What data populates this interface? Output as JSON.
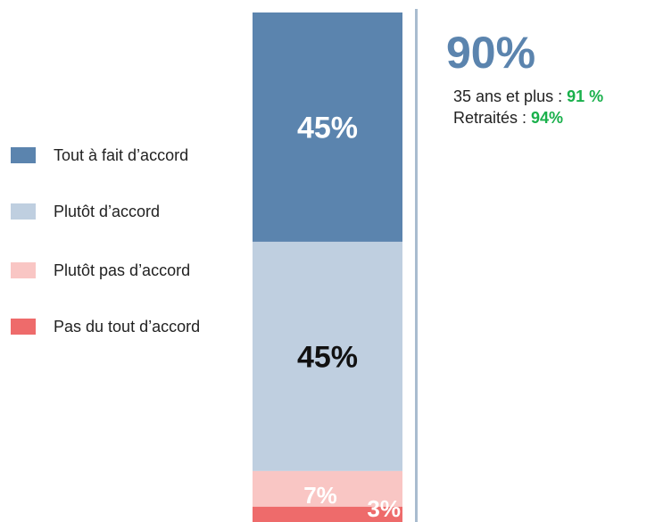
{
  "colors": {
    "strongly_agree": "#5b84ae",
    "somewhat_agree": "#bfcfe0",
    "somewhat_disagree": "#f9c6c4",
    "strongly_disagree": "#ee6b6b",
    "headline": "#5b84ae",
    "highlight": "#19b04b"
  },
  "legend": [
    {
      "label": "Tout à fait d’accord",
      "color": "#5b84ae"
    },
    {
      "label": "Plutôt d’accord",
      "color": "#bfcfe0"
    },
    {
      "label": "Plutôt pas d’accord",
      "color": "#f9c6c4"
    },
    {
      "label": "Pas du tout d’accord",
      "color": "#ee6b6b"
    }
  ],
  "summary": {
    "headline": "90%",
    "details": [
      {
        "label": "35 ans et plus : ",
        "value": "91 %"
      },
      {
        "label": "Retraités : ",
        "value": "94%"
      }
    ]
  },
  "chart_data": {
    "type": "bar",
    "stacked": true,
    "total": 100,
    "series": [
      {
        "name": "Tout à fait d’accord",
        "value": 45,
        "label": "45%",
        "color": "#5b84ae",
        "label_color": "#ffffff"
      },
      {
        "name": "Plutôt d’accord",
        "value": 45,
        "label": "45%",
        "color": "#bfcfe0",
        "label_color": "#111111"
      },
      {
        "name": "Plutôt pas d’accord",
        "value": 7,
        "label": "7%",
        "color": "#f9c6c4",
        "label_color": "#ffffff"
      },
      {
        "name": "Pas du tout d’accord",
        "value": 3,
        "label": "3%",
        "color": "#ee6b6b",
        "label_color": "#ffffff"
      }
    ]
  }
}
